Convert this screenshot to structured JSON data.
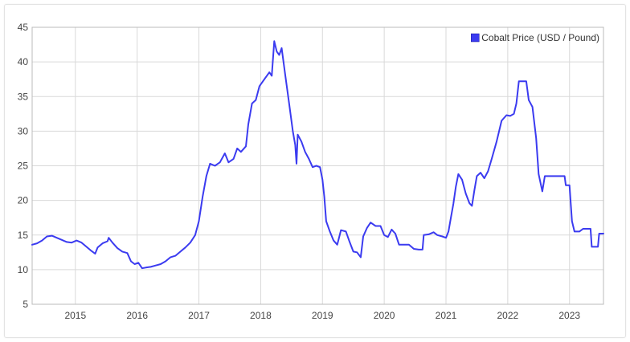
{
  "chart_data": {
    "type": "line",
    "title": "",
    "xlabel": "",
    "ylabel": "",
    "ylim": [
      5,
      45
    ],
    "xlim": [
      2014.3,
      2023.55
    ],
    "yticks": [
      "5",
      "10",
      "15",
      "20",
      "25",
      "30",
      "35",
      "40",
      "45"
    ],
    "xticks": [
      "2015",
      "2016",
      "2017",
      "2018",
      "2019",
      "2020",
      "2021",
      "2022",
      "2023"
    ],
    "grid": true,
    "legend_position": "top-right",
    "series": [
      {
        "name": "Cobalt Price (USD / Pound)",
        "color": "#3b3bf0",
        "points": [
          [
            2014.3,
            13.6
          ],
          [
            2014.38,
            13.8
          ],
          [
            2014.46,
            14.2
          ],
          [
            2014.54,
            14.8
          ],
          [
            2014.62,
            14.9
          ],
          [
            2014.7,
            14.6
          ],
          [
            2014.78,
            14.3
          ],
          [
            2014.86,
            14.0
          ],
          [
            2014.94,
            13.9
          ],
          [
            2015.02,
            14.2
          ],
          [
            2015.1,
            13.9
          ],
          [
            2015.18,
            13.3
          ],
          [
            2015.26,
            12.7
          ],
          [
            2015.32,
            12.3
          ],
          [
            2015.36,
            13.2
          ],
          [
            2015.44,
            13.8
          ],
          [
            2015.52,
            14.1
          ],
          [
            2015.54,
            14.6
          ],
          [
            2015.6,
            13.9
          ],
          [
            2015.68,
            13.1
          ],
          [
            2015.76,
            12.6
          ],
          [
            2015.84,
            12.4
          ],
          [
            2015.9,
            11.2
          ],
          [
            2015.96,
            10.8
          ],
          [
            2016.02,
            11.0
          ],
          [
            2016.08,
            10.2
          ],
          [
            2016.14,
            10.3
          ],
          [
            2016.22,
            10.4
          ],
          [
            2016.3,
            10.6
          ],
          [
            2016.38,
            10.8
          ],
          [
            2016.46,
            11.2
          ],
          [
            2016.54,
            11.8
          ],
          [
            2016.62,
            12.0
          ],
          [
            2016.7,
            12.6
          ],
          [
            2016.78,
            13.2
          ],
          [
            2016.86,
            13.9
          ],
          [
            2016.94,
            15.0
          ],
          [
            2017.0,
            17.0
          ],
          [
            2017.06,
            20.5
          ],
          [
            2017.12,
            23.5
          ],
          [
            2017.18,
            25.3
          ],
          [
            2017.26,
            25.0
          ],
          [
            2017.34,
            25.5
          ],
          [
            2017.42,
            26.8
          ],
          [
            2017.48,
            25.5
          ],
          [
            2017.56,
            26.0
          ],
          [
            2017.62,
            27.5
          ],
          [
            2017.68,
            27.0
          ],
          [
            2017.76,
            27.8
          ],
          [
            2017.8,
            31.0
          ],
          [
            2017.86,
            34.0
          ],
          [
            2017.92,
            34.5
          ],
          [
            2017.98,
            36.5
          ],
          [
            2018.06,
            37.5
          ],
          [
            2018.14,
            38.5
          ],
          [
            2018.18,
            38.0
          ],
          [
            2018.22,
            43.0
          ],
          [
            2018.26,
            41.5
          ],
          [
            2018.3,
            41.0
          ],
          [
            2018.34,
            42.0
          ],
          [
            2018.4,
            38.0
          ],
          [
            2018.46,
            34.0
          ],
          [
            2018.52,
            30.0
          ],
          [
            2018.56,
            28.0
          ],
          [
            2018.58,
            25.3
          ],
          [
            2018.6,
            29.5
          ],
          [
            2018.66,
            28.5
          ],
          [
            2018.72,
            27.0
          ],
          [
            2018.78,
            26.0
          ],
          [
            2018.84,
            24.8
          ],
          [
            2018.9,
            25.0
          ],
          [
            2018.96,
            24.8
          ],
          [
            2019.0,
            23.0
          ],
          [
            2019.03,
            20.5
          ],
          [
            2019.06,
            17.0
          ],
          [
            2019.12,
            15.5
          ],
          [
            2019.18,
            14.2
          ],
          [
            2019.24,
            13.6
          ],
          [
            2019.3,
            15.7
          ],
          [
            2019.38,
            15.5
          ],
          [
            2019.44,
            14.0
          ],
          [
            2019.5,
            12.6
          ],
          [
            2019.56,
            12.5
          ],
          [
            2019.62,
            11.8
          ],
          [
            2019.66,
            14.8
          ],
          [
            2019.72,
            16.0
          ],
          [
            2019.78,
            16.8
          ],
          [
            2019.86,
            16.3
          ],
          [
            2019.94,
            16.3
          ],
          [
            2020.0,
            15.0
          ],
          [
            2020.06,
            14.7
          ],
          [
            2020.12,
            15.8
          ],
          [
            2020.18,
            15.2
          ],
          [
            2020.24,
            13.6
          ],
          [
            2020.32,
            13.6
          ],
          [
            2020.4,
            13.6
          ],
          [
            2020.48,
            13.0
          ],
          [
            2020.56,
            12.9
          ],
          [
            2020.62,
            12.9
          ],
          [
            2020.64,
            15.0
          ],
          [
            2020.72,
            15.1
          ],
          [
            2020.8,
            15.4
          ],
          [
            2020.86,
            15.0
          ],
          [
            2020.94,
            14.8
          ],
          [
            2021.0,
            14.6
          ],
          [
            2021.04,
            15.5
          ],
          [
            2021.08,
            17.5
          ],
          [
            2021.12,
            19.5
          ],
          [
            2021.16,
            22.0
          ],
          [
            2021.2,
            23.8
          ],
          [
            2021.26,
            23.0
          ],
          [
            2021.32,
            21.0
          ],
          [
            2021.38,
            19.6
          ],
          [
            2021.42,
            19.2
          ],
          [
            2021.46,
            21.5
          ],
          [
            2021.5,
            23.5
          ],
          [
            2021.56,
            24.0
          ],
          [
            2021.62,
            23.2
          ],
          [
            2021.68,
            24.2
          ],
          [
            2021.74,
            26.0
          ],
          [
            2021.82,
            28.5
          ],
          [
            2021.9,
            31.5
          ],
          [
            2021.98,
            32.3
          ],
          [
            2022.04,
            32.2
          ],
          [
            2022.1,
            32.5
          ],
          [
            2022.14,
            34.0
          ],
          [
            2022.18,
            37.2
          ],
          [
            2022.24,
            37.2
          ],
          [
            2022.3,
            37.2
          ],
          [
            2022.34,
            34.5
          ],
          [
            2022.4,
            33.5
          ],
          [
            2022.46,
            29.0
          ],
          [
            2022.5,
            23.8
          ],
          [
            2022.56,
            21.3
          ],
          [
            2022.6,
            23.5
          ],
          [
            2022.7,
            23.5
          ],
          [
            2022.8,
            23.5
          ],
          [
            2022.92,
            23.5
          ],
          [
            2022.94,
            22.2
          ],
          [
            2023.0,
            22.2
          ],
          [
            2023.04,
            17.0
          ],
          [
            2023.08,
            15.5
          ],
          [
            2023.16,
            15.5
          ],
          [
            2023.22,
            15.9
          ],
          [
            2023.34,
            15.9
          ],
          [
            2023.36,
            13.3
          ],
          [
            2023.46,
            13.3
          ],
          [
            2023.48,
            15.2
          ],
          [
            2023.55,
            15.2
          ]
        ]
      }
    ]
  }
}
